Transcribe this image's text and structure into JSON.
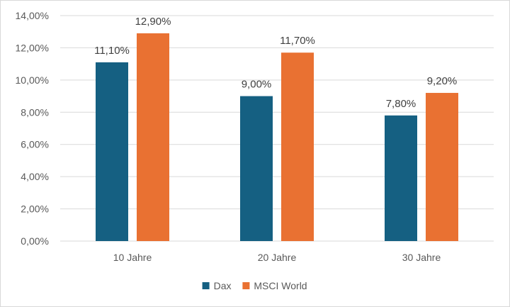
{
  "chart_data": {
    "type": "bar",
    "categories": [
      "10 Jahre",
      "20 Jahre",
      "30 Jahre"
    ],
    "series": [
      {
        "name": "Dax",
        "color": "#156082",
        "values": [
          11.1,
          9.0,
          7.8
        ],
        "labels": [
          "11,10%",
          "9,00%",
          "7,80%"
        ]
      },
      {
        "name": "MSCI World",
        "color": "#E97132",
        "values": [
          12.9,
          11.7,
          9.2
        ],
        "labels": [
          "12,90%",
          "11,70%",
          "9,20%"
        ]
      }
    ],
    "ylim": [
      0,
      14
    ],
    "yticks": [
      0,
      2,
      4,
      6,
      8,
      10,
      12,
      14
    ],
    "ytick_labels": [
      "0,00%",
      "2,00%",
      "4,00%",
      "6,00%",
      "8,00%",
      "10,00%",
      "12,00%",
      "14,00%"
    ],
    "grid": true,
    "gridline_color": "#d9d9d9",
    "legend_position": "bottom",
    "title": "",
    "xlabel": "",
    "ylabel": ""
  }
}
